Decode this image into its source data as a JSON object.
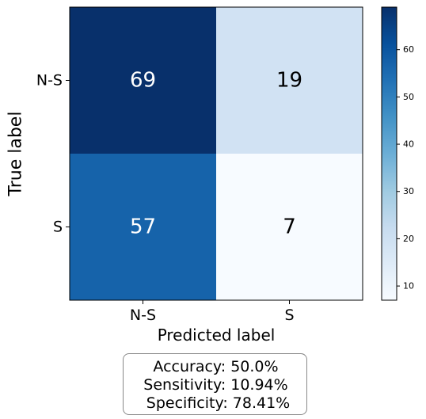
{
  "chart_data": {
    "type": "heatmap",
    "x_categories": [
      "N-S",
      "S"
    ],
    "y_categories": [
      "N-S",
      "S"
    ],
    "values": [
      [
        69,
        19
      ],
      [
        57,
        7
      ]
    ],
    "xlabel": "Predicted label",
    "ylabel": "True label",
    "colormap": "Blues",
    "colorbar": {
      "min": 7,
      "max": 69,
      "ticks": [
        10,
        20,
        30,
        40,
        50,
        60
      ]
    }
  },
  "metrics": {
    "accuracy": "Accuracy: 50.0%",
    "sensitivity": "Sensitivity: 10.94%",
    "specificity": " Specificity: 78.41%"
  }
}
